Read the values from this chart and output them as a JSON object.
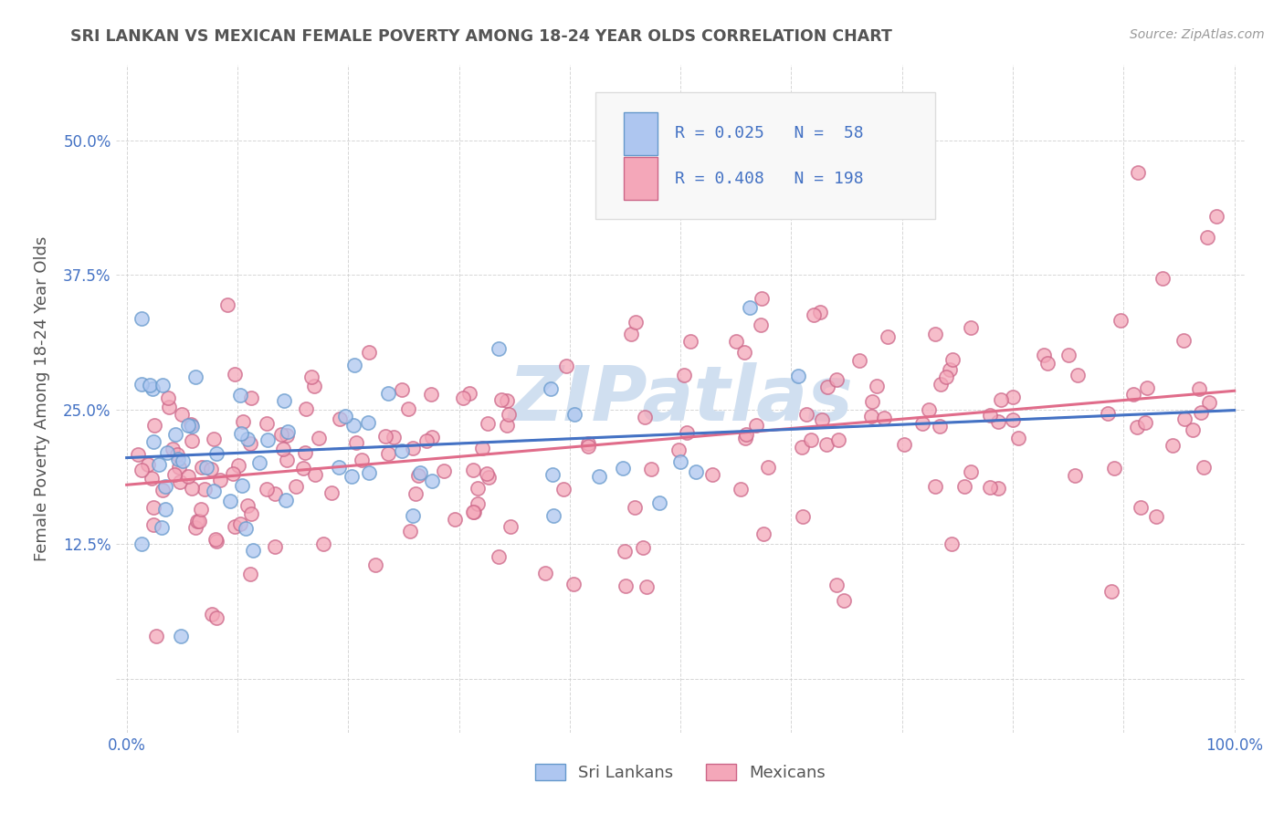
{
  "title": "SRI LANKAN VS MEXICAN FEMALE POVERTY AMONG 18-24 YEAR OLDS CORRELATION CHART",
  "source": "Source: ZipAtlas.com",
  "ylabel": "Female Poverty Among 18-24 Year Olds",
  "yticks": [
    0.0,
    0.125,
    0.25,
    0.375,
    0.5
  ],
  "ytick_labels": [
    "",
    "12.5%",
    "25.0%",
    "37.5%",
    "50.0%"
  ],
  "xticks": [
    0.0,
    0.1,
    0.2,
    0.3,
    0.4,
    0.5,
    0.6,
    0.7,
    0.8,
    0.9,
    1.0
  ],
  "xtick_labels": [
    "0.0%",
    "",
    "",
    "",
    "",
    "",
    "",
    "",
    "",
    "",
    "100.0%"
  ],
  "xlim": [
    -0.01,
    1.01
  ],
  "ylim": [
    -0.05,
    0.57
  ],
  "sri_lankan_R": 0.025,
  "sri_lankan_N": 58,
  "mexican_R": 0.408,
  "mexican_N": 198,
  "sri_lankan_face": "#aec6f0",
  "sri_lankan_edge": "#6699cc",
  "sri_lankan_line_color": "#4472c4",
  "mexican_face": "#f4a7b9",
  "mexican_edge": "#cc6688",
  "mexican_line_color": "#e06c8a",
  "watermark_color": "#d0dff0",
  "background_color": "#ffffff",
  "grid_color": "#cccccc",
  "title_color": "#555555",
  "axis_label_color": "#4472c4",
  "legend_text_color": "#4472c4",
  "legend_box_facecolor": "#f8f8f8",
  "legend_box_edgecolor": "#dddddd"
}
